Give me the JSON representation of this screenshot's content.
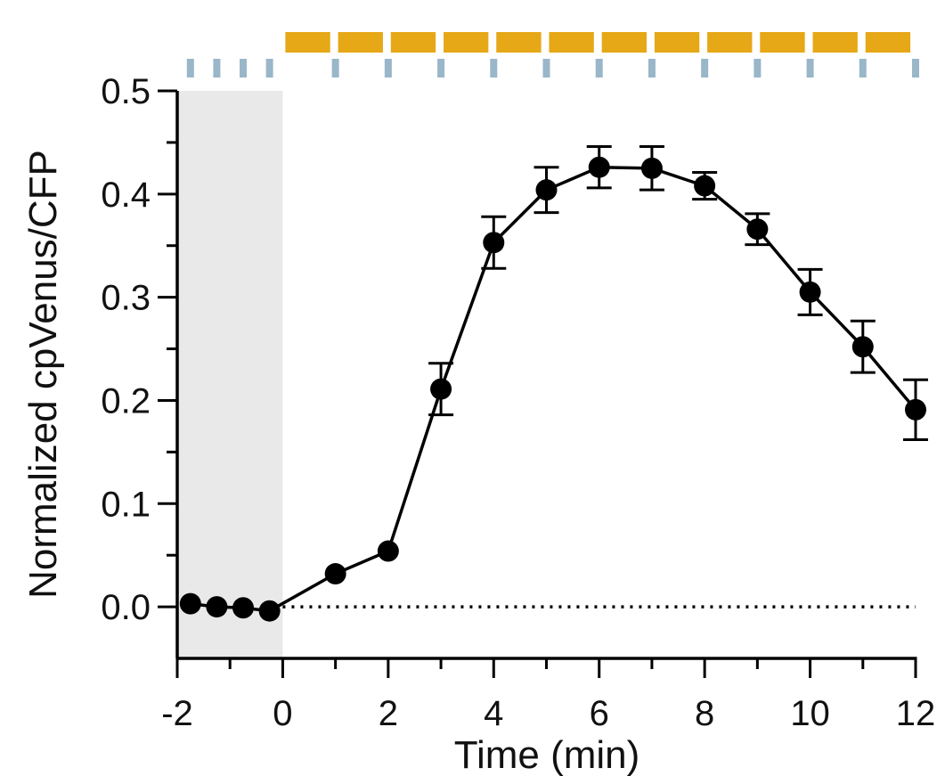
{
  "chart_data": {
    "type": "line",
    "title": "",
    "xlabel": "Time (min)",
    "ylabel": "Normalized cpVenus/CFP",
    "xlim": [
      -2,
      12
    ],
    "ylim": [
      -0.05,
      0.5
    ],
    "x_ticks": [
      -2,
      0,
      2,
      4,
      6,
      8,
      10,
      12
    ],
    "x_tick_labels": [
      "-2",
      "0",
      "2",
      "4",
      "6",
      "8",
      "10",
      "12"
    ],
    "x_minor_ticks": [
      -1,
      1,
      3,
      5,
      7,
      9,
      11
    ],
    "y_ticks": [
      0.0,
      0.1,
      0.2,
      0.3,
      0.4,
      0.5
    ],
    "y_tick_labels": [
      "0.0",
      "0.1",
      "0.2",
      "0.3",
      "0.4",
      "0.5"
    ],
    "y_minor_ticks": [
      0.05,
      0.15,
      0.25,
      0.35,
      0.45
    ],
    "grid": false,
    "shaded_region": {
      "x": [
        -2,
        0
      ],
      "color": "#e9e9e9"
    },
    "reference_line": {
      "y": 0,
      "style": "dotted"
    },
    "stimulus_bar": {
      "color": "#e6a817",
      "intervals": [
        [
          0.05,
          0.9
        ],
        [
          1.05,
          1.9
        ],
        [
          2.05,
          2.9
        ],
        [
          3.05,
          3.9
        ],
        [
          4.05,
          4.9
        ],
        [
          5.05,
          5.9
        ],
        [
          6.05,
          6.9
        ],
        [
          7.05,
          7.9
        ],
        [
          8.05,
          8.9
        ],
        [
          9.05,
          9.9
        ],
        [
          10.05,
          10.9
        ],
        [
          11.05,
          11.9
        ]
      ]
    },
    "imaging_marks": {
      "color": "#9ab6c9",
      "x": [
        -1.75,
        -1.25,
        -0.75,
        -0.25,
        1,
        2,
        3,
        4,
        5,
        6,
        7,
        8,
        9,
        10,
        11,
        12
      ]
    },
    "series": [
      {
        "x": [
          -1.75,
          -1.25,
          -0.75,
          -0.25,
          1,
          2,
          3,
          4,
          5,
          6,
          7,
          8,
          9,
          10,
          11,
          12
        ],
        "values": [
          0.003,
          0.0,
          -0.001,
          -0.004,
          0.032,
          0.054,
          0.211,
          0.353,
          0.404,
          0.426,
          0.425,
          0.408,
          0.366,
          0.305,
          0.252,
          0.191
        ],
        "error": [
          0,
          0,
          0,
          0,
          0,
          0,
          0.025,
          0.025,
          0.022,
          0.02,
          0.021,
          0.013,
          0.015,
          0.022,
          0.025,
          0.029
        ],
        "color": "#000000"
      }
    ]
  }
}
